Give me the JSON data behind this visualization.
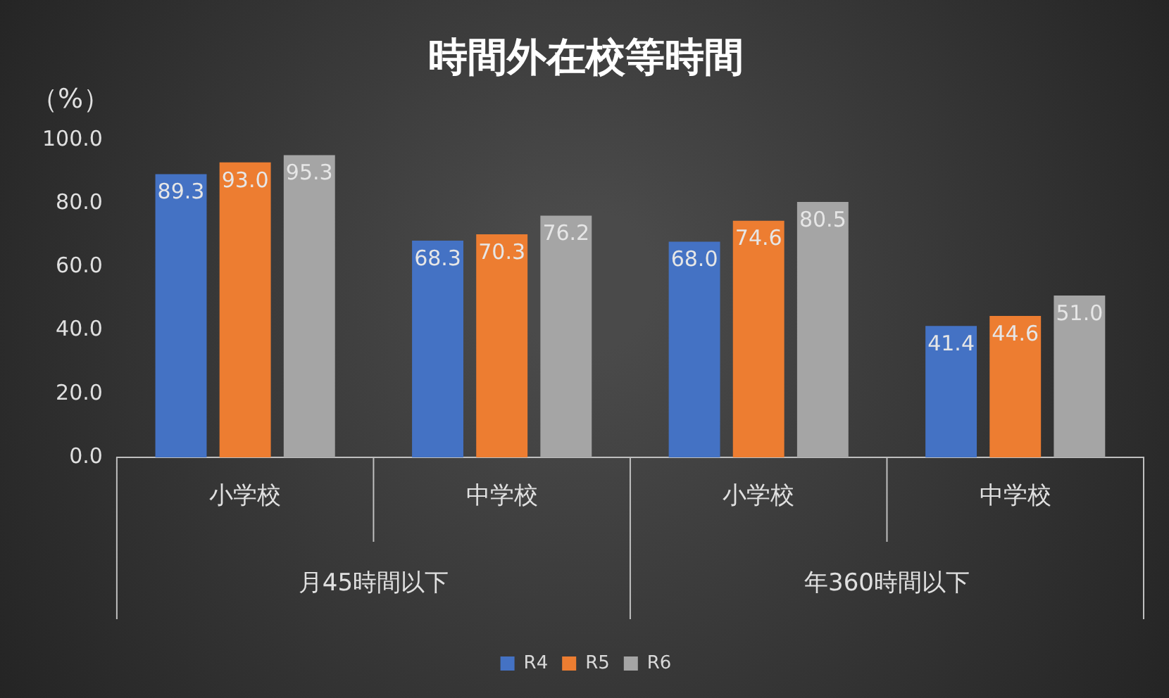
{
  "chart_data": {
    "type": "bar",
    "title": "時間外在校等時間",
    "ylabel": "（%）",
    "categories": [
      "小学校",
      "中学校",
      "小学校",
      "中学校"
    ],
    "series": [
      {
        "name": "R4",
        "color": "#4472c4",
        "values": [
          89.3,
          68.3,
          68.0,
          41.4
        ],
        "value_labels": [
          "89.3",
          "68.3",
          "68.0",
          "41.4"
        ]
      },
      {
        "name": "R5",
        "color": "#ed7d31",
        "values": [
          93.0,
          70.3,
          74.6,
          44.6
        ],
        "value_labels": [
          "93.0",
          "70.3",
          "74.6",
          "44.6"
        ]
      },
      {
        "name": "R6",
        "color": "#a5a5a5",
        "values": [
          95.3,
          76.2,
          80.5,
          51.0
        ],
        "value_labels": [
          "95.3",
          "76.2",
          "80.5",
          "51.0"
        ]
      }
    ],
    "ylim": [
      0,
      100
    ],
    "yticks": [
      {
        "value": 0,
        "label": "0.0"
      },
      {
        "value": 20,
        "label": "20.0"
      },
      {
        "value": 40,
        "label": "40.0"
      },
      {
        "value": 60,
        "label": "60.0"
      },
      {
        "value": 80,
        "label": "80.0"
      },
      {
        "value": 100,
        "label": "100.0"
      }
    ],
    "annotations": [
      "月45時間以下",
      "年360時間以下"
    ],
    "grid": false,
    "legend": "bottom"
  }
}
